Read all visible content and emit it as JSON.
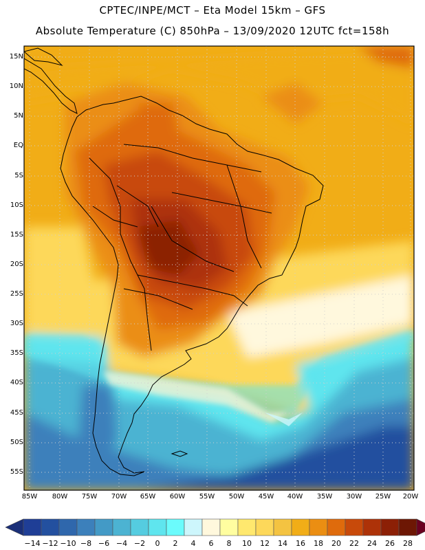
{
  "titles": {
    "line1": "CPTEC/INPE/MCT –  Eta Model 15km – GFS",
    "line2": "Absolute Temperature (C) 850hPa – 13/09/2020 12UTC fct=158h"
  },
  "lat_labels": [
    "15N",
    "10N",
    "5N",
    "EQ",
    "5S",
    "10S",
    "15S",
    "20S",
    "25S",
    "30S",
    "35S",
    "40S",
    "45S",
    "50S",
    "55S"
  ],
  "lon_labels": [
    "85W",
    "80W",
    "75W",
    "70W",
    "65W",
    "60W",
    "55W",
    "50W",
    "45W",
    "40W",
    "35W",
    "30W",
    "25W",
    "20W"
  ],
  "colorbar": {
    "labels": [
      "-14",
      "-12",
      "-10",
      "-8",
      "-6",
      "-4",
      "-2",
      "0",
      "2",
      "4",
      "6",
      "8",
      "10",
      "12",
      "14",
      "16",
      "18",
      "20",
      "22",
      "24",
      "26",
      "28"
    ],
    "colors": [
      "#1f3e96",
      "#23509f",
      "#2f67ac",
      "#3c80bb",
      "#439ac6",
      "#4cb3d2",
      "#55cce0",
      "#5fe5ee",
      "#6bfbfc",
      "#cdf6fc",
      "#fff8dd",
      "#fffea0",
      "#ffe86e",
      "#fdd85a",
      "#f4c341",
      "#f1ad17",
      "#eb8e12",
      "#df6b0c",
      "#c84a0a",
      "#ad3208",
      "#8c2006",
      "#6d1704"
    ],
    "low_color": "#1a2f78",
    "high_color": "#6a0020"
  },
  "map_colors": {
    "deep_blue": "#1f3e96",
    "blue": "#3c80bb",
    "light_blue": "#4cb3d2",
    "cyan": "#5fe5ee",
    "cream": "#fff8dd",
    "yellow": "#fdd85a",
    "orange_light": "#f1ad17",
    "orange": "#eb8e12",
    "dark_orange": "#df6b0c",
    "red": "#c84a0a",
    "brown": "#8c2006"
  }
}
